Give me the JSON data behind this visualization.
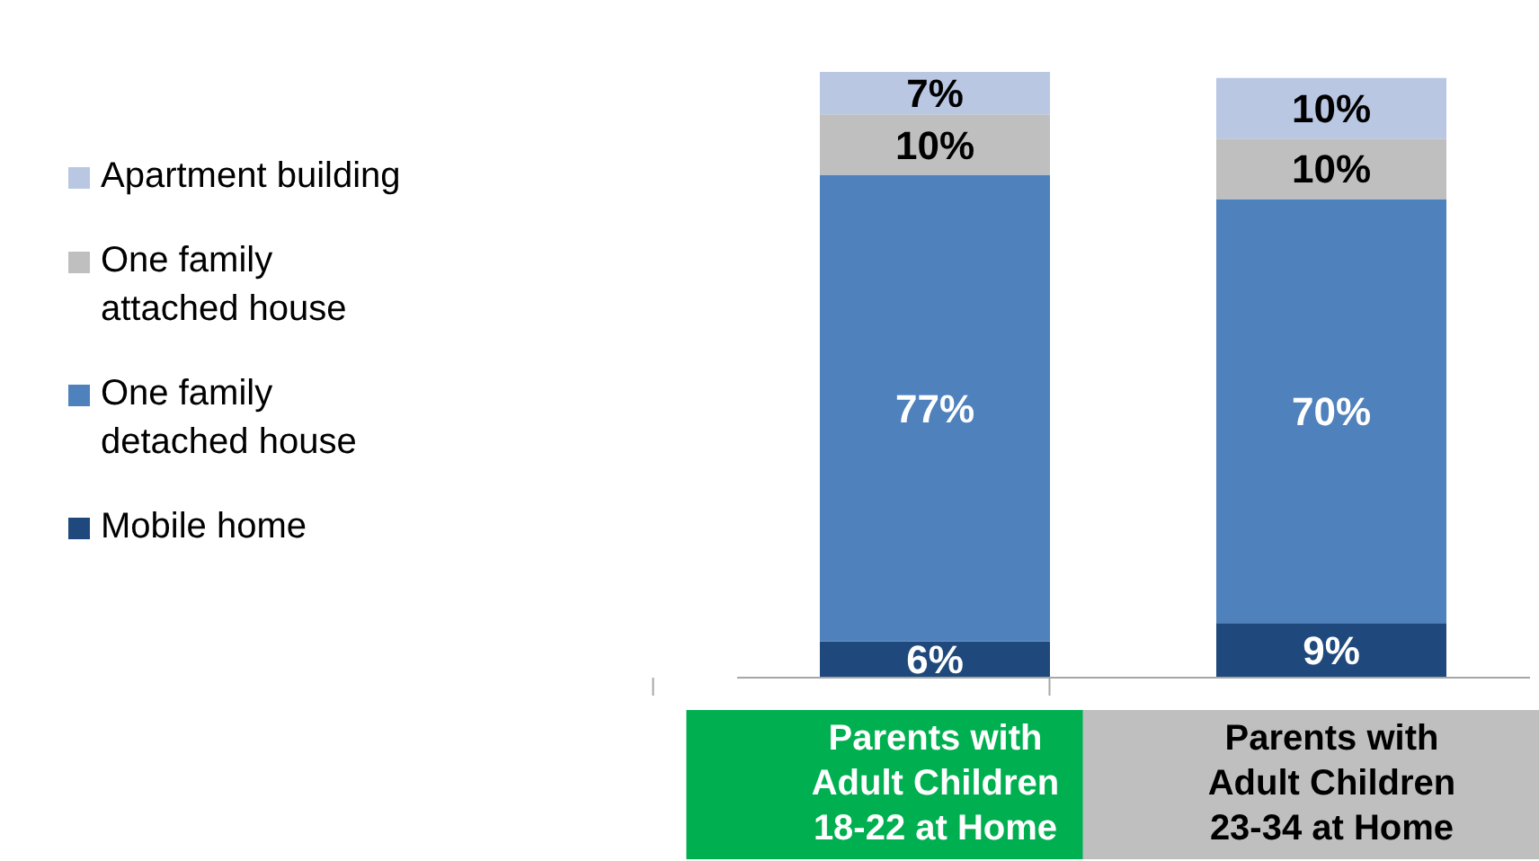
{
  "chart_data": {
    "type": "bar",
    "stacked": true,
    "legend": "left",
    "categories": [
      "Parents with Adult Children 18-22 at Home",
      "Parents with Adult Children 23-34 at Home"
    ],
    "series": [
      {
        "name": "Mobile home",
        "color": "#1f497d",
        "values": [
          6,
          9
        ],
        "value_labels": [
          "6%",
          "9%"
        ]
      },
      {
        "name": "One family detached house",
        "color": "#4f81bd",
        "values": [
          77,
          70
        ],
        "value_labels": [
          "77%",
          "70%"
        ]
      },
      {
        "name": "One family attached house",
        "color": "#bfbfbf",
        "values": [
          10,
          10
        ],
        "value_labels": [
          "10%",
          "10%"
        ]
      },
      {
        "name": "Apartment building",
        "color": "#b9c7e3",
        "values": [
          7,
          10
        ],
        "value_labels": [
          "7%",
          "10%"
        ]
      }
    ]
  }
}
